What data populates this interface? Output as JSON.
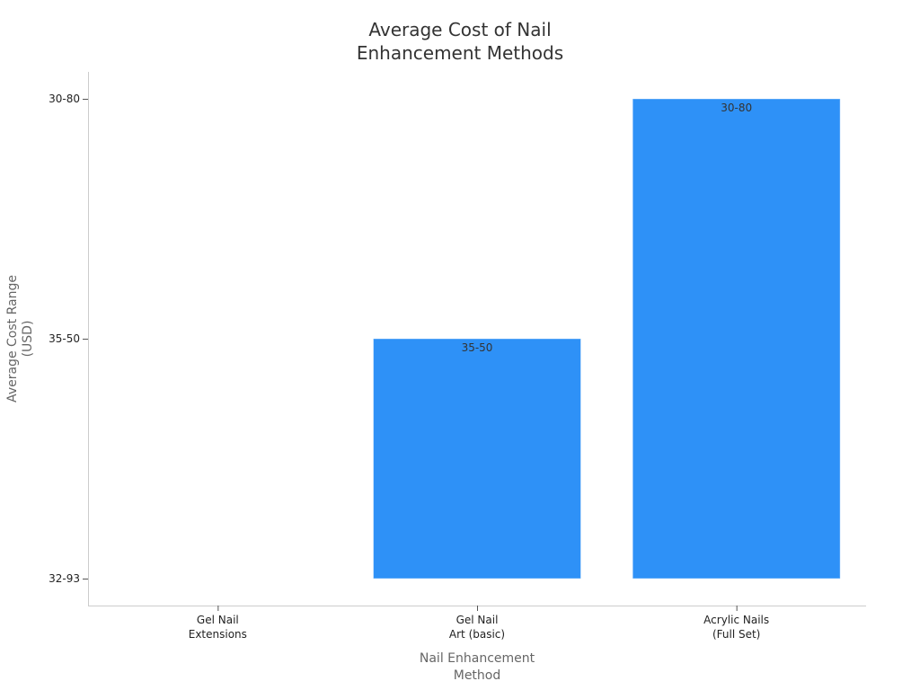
{
  "chart_data": {
    "type": "bar",
    "title": "Average Cost of Nail Enhancement Methods",
    "title_lines": [
      "Average Cost of Nail",
      "Enhancement Methods"
    ],
    "xlabel": "Nail Enhancement Method",
    "xlabel_lines": [
      "Nail Enhancement",
      "Method"
    ],
    "ylabel": "Average Cost Range (USD)",
    "ylabel_lines": [
      "Average Cost Range",
      "(USD)"
    ],
    "y_scale": "categorical",
    "y_categories": [
      "32-93",
      "35-50",
      "30-80"
    ],
    "categories": [
      "Gel Nail Extensions",
      "Gel Nail Art (basic)",
      "Acrylic Nails (Full Set)"
    ],
    "category_lines": [
      [
        "Gel Nail",
        "Extensions"
      ],
      [
        "Gel Nail",
        "Art (basic)"
      ],
      [
        "Acrylic Nails",
        "(Full Set)"
      ]
    ],
    "values": [
      "32-93",
      "35-50",
      "30-80"
    ],
    "data_labels": [
      "",
      "35-50",
      "30-80"
    ],
    "bar_color": "#2e91f7",
    "grid": false,
    "legend": "none"
  }
}
